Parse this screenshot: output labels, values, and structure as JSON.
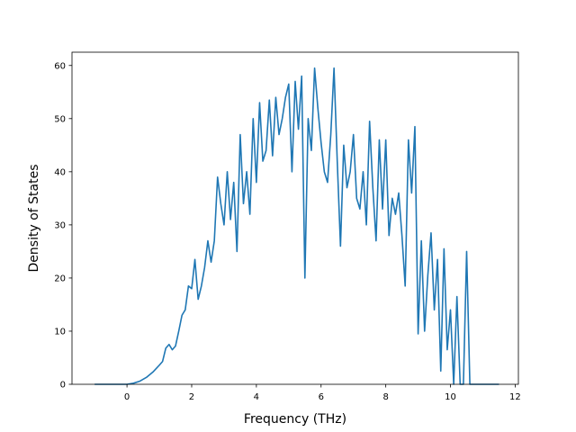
{
  "chart_data": {
    "type": "line",
    "title": "",
    "xlabel": "Frequency (THz)",
    "ylabel": "Density of States",
    "xlim": [
      -1.7,
      12.1
    ],
    "ylim": [
      0,
      62.5
    ],
    "xticks": [
      0,
      2,
      4,
      6,
      8,
      10,
      12
    ],
    "yticks": [
      0,
      10,
      20,
      30,
      40,
      50,
      60
    ],
    "grid": false,
    "legend": "none",
    "series": [
      {
        "color": "#1f77b4",
        "x": [
          -1.0,
          0.0,
          0.2,
          0.4,
          0.6,
          0.8,
          1.0,
          1.1,
          1.2,
          1.3,
          1.4,
          1.5,
          1.6,
          1.7,
          1.8,
          1.9,
          2.0,
          2.1,
          2.2,
          2.3,
          2.4,
          2.5,
          2.6,
          2.7,
          2.8,
          2.9,
          3.0,
          3.1,
          3.2,
          3.3,
          3.4,
          3.5,
          3.6,
          3.7,
          3.8,
          3.9,
          4.0,
          4.1,
          4.2,
          4.3,
          4.4,
          4.5,
          4.6,
          4.7,
          4.8,
          4.9,
          5.0,
          5.1,
          5.2,
          5.3,
          5.4,
          5.5,
          5.6,
          5.7,
          5.8,
          5.9,
          6.0,
          6.1,
          6.2,
          6.3,
          6.4,
          6.5,
          6.6,
          6.7,
          6.8,
          6.9,
          7.0,
          7.1,
          7.2,
          7.3,
          7.4,
          7.5,
          7.6,
          7.7,
          7.8,
          7.9,
          8.0,
          8.1,
          8.2,
          8.3,
          8.4,
          8.5,
          8.6,
          8.7,
          8.8,
          8.9,
          9.0,
          9.1,
          9.2,
          9.3,
          9.4,
          9.5,
          9.6,
          9.7,
          9.8,
          9.9,
          10.0,
          10.1,
          10.2,
          10.3,
          10.4,
          10.5,
          10.6,
          10.8,
          11.0,
          11.5
        ],
        "values": [
          0,
          0,
          0.2,
          0.6,
          1.3,
          2.3,
          3.6,
          4.3,
          6.8,
          7.5,
          6.5,
          7.2,
          10,
          13,
          14,
          18.5,
          18,
          23.5,
          16,
          18.5,
          22,
          27,
          23,
          27,
          39,
          34,
          30,
          40,
          31,
          38,
          25,
          47,
          34,
          40,
          32,
          50,
          38,
          53,
          42,
          44,
          53.5,
          43,
          54,
          47,
          50,
          54,
          56.5,
          40,
          57,
          48,
          58,
          20,
          50,
          44,
          59.5,
          52,
          45.5,
          40,
          38,
          47,
          59.5,
          42,
          26,
          45,
          37,
          40,
          47,
          35,
          33,
          40,
          30,
          49.5,
          37,
          27,
          46,
          33,
          46,
          28,
          35,
          32,
          36,
          28,
          18.5,
          46,
          36,
          48.5,
          9.5,
          27,
          10,
          20.5,
          28.5,
          14,
          23.5,
          2.5,
          25.5,
          6.5,
          14,
          0,
          16.5,
          0,
          0,
          25,
          0,
          0,
          0,
          0
        ]
      }
    ]
  }
}
